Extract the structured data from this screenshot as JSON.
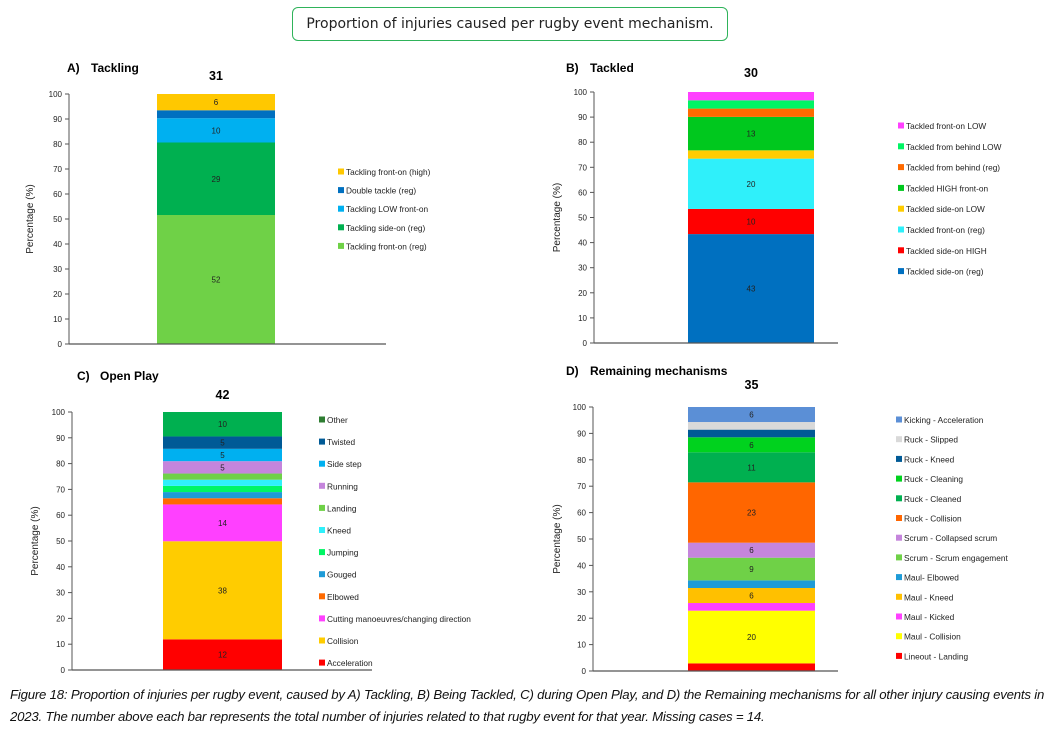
{
  "header": {
    "title": "Proportion of injuries caused per rugby event mechanism."
  },
  "caption": "Figure 18: Proportion of injuries per rugby event, caused by A) Tackling, B) Being Tackled, C) during Open Play, and D) the Remaining mechanisms for all other injury causing events in 2023. The number above each bar represents the total number of injuries related to that rugby event for that year. Missing cases = 14.",
  "chart_data": [
    {
      "type": "bar",
      "stacked": true,
      "panel_letter": "A)",
      "title": "Tackling",
      "total_label": "31",
      "ylabel": "Percentage (%)",
      "xlabel": "",
      "ylim": [
        0,
        100
      ],
      "yticks": [
        0,
        10,
        20,
        30,
        40,
        50,
        60,
        70,
        80,
        90,
        100
      ],
      "grid": false,
      "legend_position": "right",
      "segments": [
        {
          "name": "Tackling front-on (reg)",
          "value": 51.6,
          "label": "52",
          "color": "#6fd147"
        },
        {
          "name": "Tackling side-on (reg)",
          "value": 29.0,
          "label": "29",
          "color": "#00b050"
        },
        {
          "name": "Tackling LOW front-on",
          "value": 9.7,
          "label": "10",
          "color": "#00b0f0"
        },
        {
          "name": "Double tackle (reg)",
          "value": 3.2,
          "label": "",
          "color": "#0070c0"
        },
        {
          "name": "Tackling front-on (high)",
          "value": 6.5,
          "label": "6",
          "color": "#ffc800"
        }
      ]
    },
    {
      "type": "bar",
      "stacked": true,
      "panel_letter": "B)",
      "title": "Tackled",
      "total_label": "30",
      "ylabel": "Percentage (%)",
      "xlabel": "",
      "ylim": [
        0,
        100
      ],
      "yticks": [
        0,
        10,
        20,
        30,
        40,
        50,
        60,
        70,
        80,
        90,
        100
      ],
      "grid": false,
      "legend_position": "right",
      "segments": [
        {
          "name": "Tackled side-on (reg)",
          "value": 43.3,
          "label": "43",
          "color": "#0070c0"
        },
        {
          "name": "Tackled side-on HIGH",
          "value": 10.0,
          "label": "10",
          "color": "#ff0000"
        },
        {
          "name": "Tackled front-on (reg)",
          "value": 20.0,
          "label": "20",
          "color": "#2ff0fa"
        },
        {
          "name": "Tackled side-on LOW",
          "value": 3.3,
          "label": "",
          "color": "#ffcc00"
        },
        {
          "name": "Tackled HIGH front-on",
          "value": 13.3,
          "label": "13",
          "color": "#00c81e"
        },
        {
          "name": "Tackled from behind (reg)",
          "value": 3.3,
          "label": "",
          "color": "#ff6a00"
        },
        {
          "name": "Tackled from behind LOW",
          "value": 3.3,
          "label": "",
          "color": "#00f564"
        },
        {
          "name": "Tackled front-on LOW",
          "value": 3.3,
          "label": "",
          "color": "#ff40ff"
        }
      ]
    },
    {
      "type": "bar",
      "stacked": true,
      "panel_letter": "C)",
      "title": "Open Play",
      "total_label": "42",
      "ylabel": "Percentage (%)",
      "xlabel": "",
      "ylim": [
        0,
        100
      ],
      "yticks": [
        0,
        10,
        20,
        30,
        40,
        50,
        60,
        70,
        80,
        90,
        100
      ],
      "grid": false,
      "legend_position": "right",
      "segments": [
        {
          "name": "Acceleration",
          "value": 11.9,
          "label": "12",
          "color": "#ff0000"
        },
        {
          "name": "Collision",
          "value": 38.1,
          "label": "38",
          "color": "#ffcc00"
        },
        {
          "name": "Cutting manoeuvres/changing direction",
          "value": 14.3,
          "label": "14",
          "color": "#ff40ff"
        },
        {
          "name": "Elbowed",
          "value": 2.4,
          "label": "",
          "color": "#ff6a00"
        },
        {
          "name": "Gouged",
          "value": 2.4,
          "label": "",
          "color": "#1e9bd7"
        },
        {
          "name": "Jumping",
          "value": 2.4,
          "label": "",
          "color": "#00f564"
        },
        {
          "name": "Kneed",
          "value": 2.4,
          "label": "",
          "color": "#2ff0fa"
        },
        {
          "name": "Landing",
          "value": 2.4,
          "label": "",
          "color": "#6fd147"
        },
        {
          "name": "Running",
          "value": 4.8,
          "label": "5",
          "color": "#c585dc"
        },
        {
          "name": "Side step",
          "value": 4.8,
          "label": "5",
          "color": "#00b0f0"
        },
        {
          "name": "Twisted",
          "value": 4.8,
          "label": "5",
          "color": "#005a96"
        },
        {
          "name": "Other",
          "value": 9.5,
          "label": "10",
          "color": "#00b050",
          "legend_color": "#2e7d32"
        }
      ]
    },
    {
      "type": "bar",
      "stacked": true,
      "panel_letter": "D)",
      "title": "Remaining mechanisms",
      "total_label": "35",
      "ylabel": "Percentage (%)",
      "xlabel": "",
      "ylim": [
        0,
        100
      ],
      "yticks": [
        0,
        10,
        20,
        30,
        40,
        50,
        60,
        70,
        80,
        90,
        100
      ],
      "grid": false,
      "legend_position": "right",
      "segments": [
        {
          "name": "Lineout - Landing",
          "value": 2.9,
          "label": "",
          "color": "#ff0000"
        },
        {
          "name": "Maul - Collision",
          "value": 20.0,
          "label": "20",
          "color": "#ffff00"
        },
        {
          "name": "Maul - Kicked",
          "value": 2.9,
          "label": "",
          "color": "#ff40ff"
        },
        {
          "name": "Maul - Kneed",
          "value": 5.7,
          "label": "6",
          "color": "#ffc000"
        },
        {
          "name": "Maul- Elbowed",
          "value": 2.9,
          "label": "",
          "color": "#1e9bd7"
        },
        {
          "name": "Scrum - Scrum engagement",
          "value": 8.6,
          "label": "9",
          "color": "#6fd147"
        },
        {
          "name": "Scrum - Collapsed scrum",
          "value": 5.7,
          "label": "6",
          "color": "#c585dc"
        },
        {
          "name": "Ruck - Collision",
          "value": 22.9,
          "label": "23",
          "color": "#ff6600"
        },
        {
          "name": "Ruck - Cleaned",
          "value": 11.4,
          "label": "11",
          "color": "#00b050"
        },
        {
          "name": "Ruck - Cleaning",
          "value": 5.7,
          "label": "6",
          "color": "#00d21e"
        },
        {
          "name": "Ruck - Kneed",
          "value": 2.9,
          "label": "",
          "color": "#005a96"
        },
        {
          "name": "Ruck - Slipped",
          "value": 2.9,
          "label": "",
          "color": "#d9d9d9"
        },
        {
          "name": "Kicking  - Acceleration",
          "value": 5.7,
          "label": "6",
          "color": "#5b8fd6"
        }
      ]
    }
  ]
}
